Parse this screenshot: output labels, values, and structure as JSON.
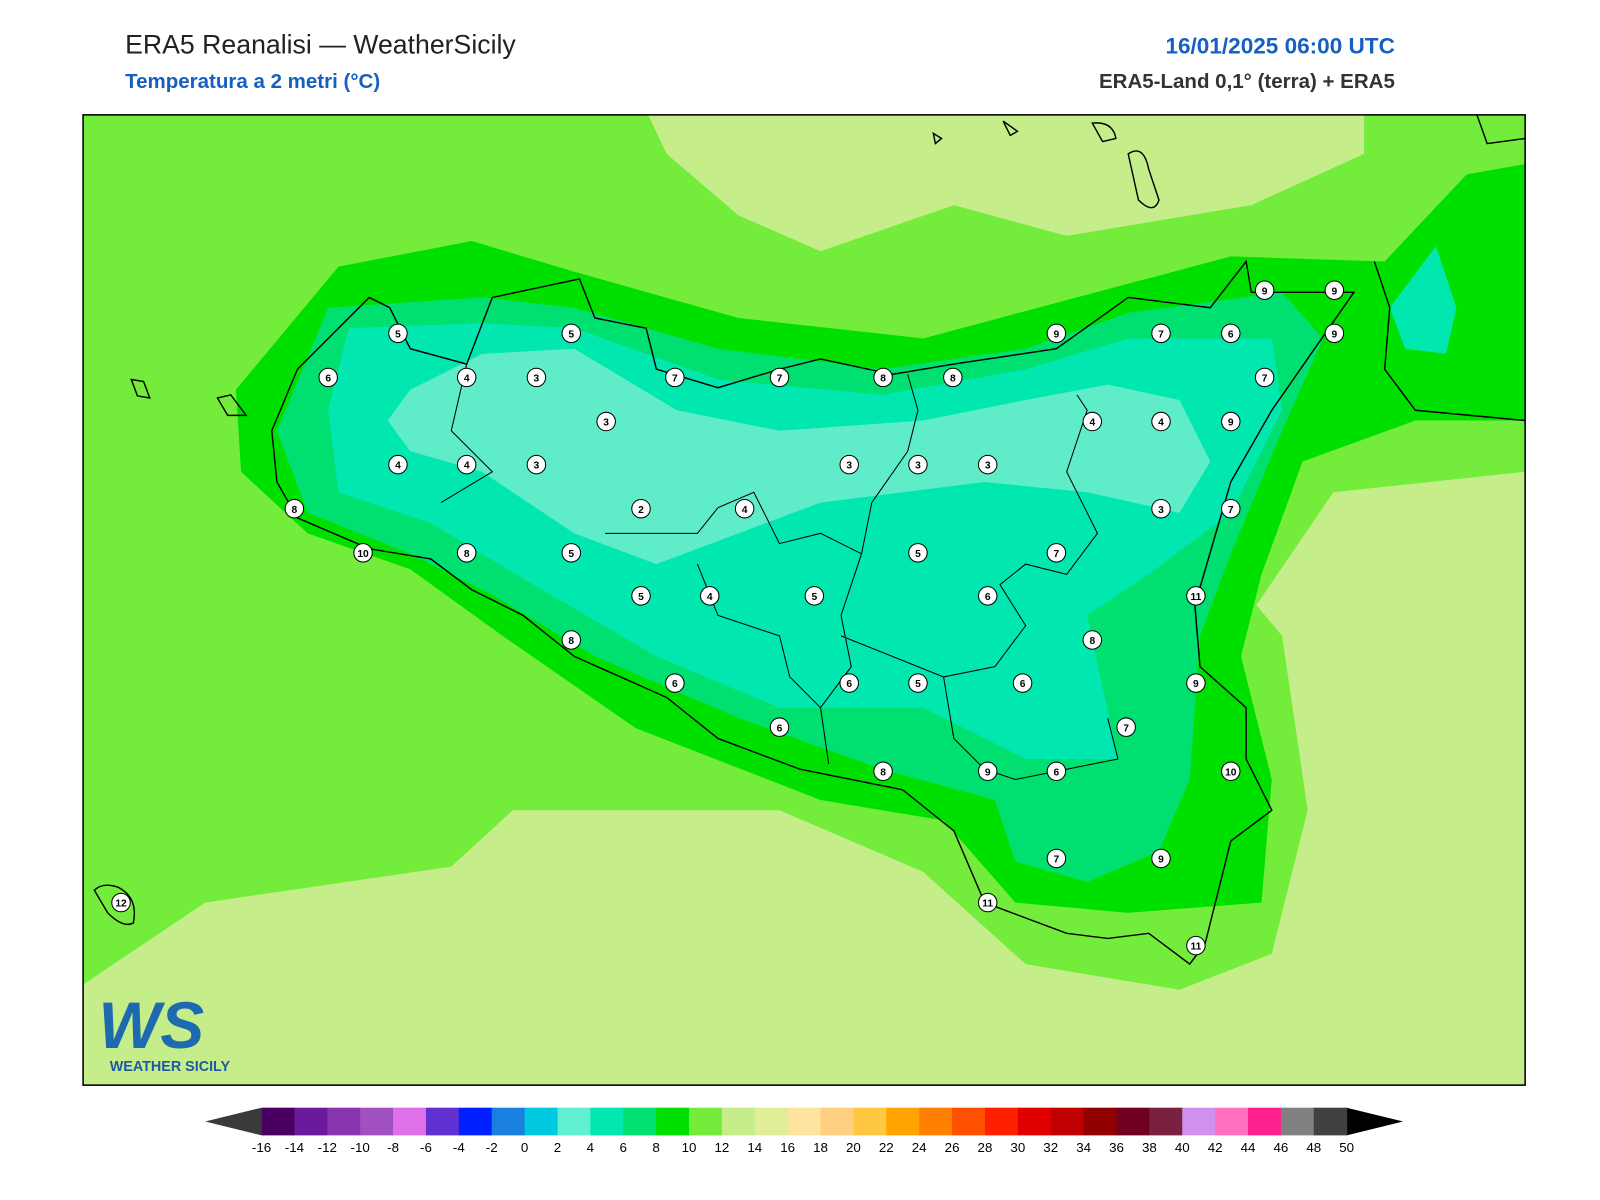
{
  "header": {
    "title": "ERA5 Reanalisi — WeatherSicily",
    "subtitle": "Temperatura a 2 metri (°C)",
    "datetime": "16/01/2025 06:00 UTC",
    "source": "ERA5-Land 0,1° (terra) + ERA5"
  },
  "stations": [
    9,
    9,
    5,
    5,
    9,
    7,
    6,
    9,
    6,
    4,
    3,
    7,
    7,
    8,
    8,
    7,
    3,
    4,
    4,
    9,
    4,
    4,
    3,
    3,
    3,
    3,
    8,
    2,
    4,
    3,
    7,
    10,
    8,
    5,
    5,
    7,
    5,
    4,
    5,
    6,
    11,
    8,
    8,
    6,
    6,
    5,
    6,
    9,
    6,
    7,
    8,
    9,
    6,
    10,
    7,
    9,
    12,
    11,
    11
  ],
  "colorbar": {
    "ticks": [
      -16,
      -14,
      -12,
      -10,
      -8,
      -6,
      -4,
      -2,
      0,
      2,
      4,
      6,
      8,
      10,
      12,
      14,
      16,
      18,
      20,
      22,
      24,
      26,
      28,
      30,
      32,
      34,
      36,
      38,
      40,
      42,
      44,
      46,
      48,
      50
    ],
    "colors": [
      "#4a0060",
      "#6a1a9a",
      "#8a35b0",
      "#a050c0",
      "#e070e8",
      "#6030d0",
      "#0020ff",
      "#1a80e0",
      "#00c8e0",
      "#60f0d0",
      "#00e8b0",
      "#00e070",
      "#00e000",
      "#74ec3c",
      "#c5ee8a",
      "#e0ee98",
      "#ffe4a0",
      "#ffd080",
      "#ffc840",
      "#ffa400",
      "#ff8000",
      "#ff5000",
      "#ff2000",
      "#e00000",
      "#c00000",
      "#900000",
      "#700020",
      "#7a2040",
      "#d090f0",
      "#ff70c0",
      "#ff2090",
      "#808080",
      "#404040"
    ],
    "under_color": "#3a3a3a",
    "over_color": "#000000"
  },
  "logo": {
    "text": "WS",
    "caption": "WEATHER SICILY"
  }
}
